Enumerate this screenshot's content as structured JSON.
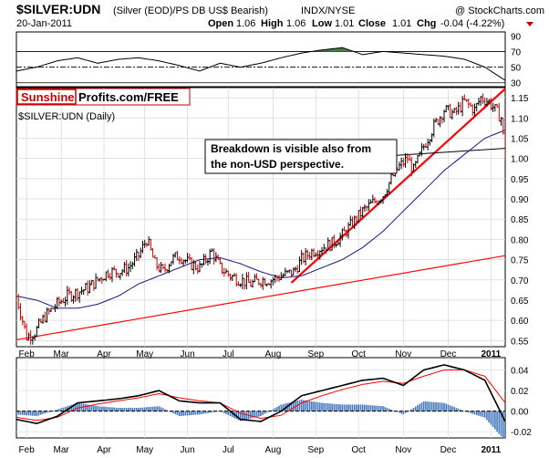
{
  "header": {
    "symbol": "$SILVER:UDN",
    "description": "(Silver (EOD)/PS DB US$ Bearish)",
    "exchange": "INDX/NYSE",
    "watermark": "@ StockCharts.com",
    "date": "20-Jan-2011",
    "ohlc": {
      "open_label": "Open",
      "open": "1.06",
      "high_label": "High",
      "high": "1.06",
      "low_label": "Low",
      "low": "1.01",
      "close_label": "Close",
      "close": "1.01",
      "chg_label": "Chg",
      "chg": "-0.04 (-4.22%)"
    }
  },
  "logo": {
    "part1": "Sunshine",
    "part2": "Profits.com/FREE"
  },
  "main_panel_label": "$SILVER:UDN (Daily)",
  "annotation": {
    "line1": "Breakdown is visible also from",
    "line2": "the non-USD perspective."
  },
  "colors": {
    "price_up": "#000000",
    "price_down": "#cc0000",
    "moving_average": "#1a1a80",
    "trendline": "#ff0000",
    "rsi_overbought_fill": "#4a7a4a",
    "macd_line": "#000000",
    "macd_signal": "#ff0000",
    "histogram": "#4477bb"
  },
  "chart_data": [
    {
      "type": "line",
      "panel": "rsi",
      "ylim": [
        25,
        95
      ],
      "yticks": [
        30,
        50,
        70,
        90
      ],
      "reference_lines": [
        30,
        50,
        70
      ],
      "x": [
        0,
        10,
        20,
        30,
        40,
        50,
        60,
        70,
        80,
        90,
        100,
        110,
        120,
        130,
        140,
        150,
        160,
        170,
        180,
        190,
        200,
        210,
        220,
        230,
        240
      ],
      "values": [
        45,
        50,
        58,
        62,
        55,
        60,
        62,
        58,
        52,
        45,
        55,
        50,
        55,
        62,
        68,
        72,
        75,
        66,
        70,
        68,
        66,
        64,
        60,
        50,
        33
      ]
    },
    {
      "type": "line",
      "panel": "price",
      "title": "$SILVER:UDN (Daily)",
      "ylim": [
        0.535,
        1.175
      ],
      "yticks": [
        0.55,
        0.6,
        0.65,
        0.7,
        0.75,
        0.8,
        0.85,
        0.9,
        0.95,
        1.0,
        1.05,
        1.1,
        1.15
      ],
      "x_tick_labels": [
        {
          "label": "Feb",
          "x": 5
        },
        {
          "label": "Mar",
          "x": 22
        },
        {
          "label": "Apr",
          "x": 43
        },
        {
          "label": "May",
          "x": 63
        },
        {
          "label": "Jun",
          "x": 84
        },
        {
          "label": "Jul",
          "x": 104
        },
        {
          "label": "Aug",
          "x": 126
        },
        {
          "label": "Sep",
          "x": 147
        },
        {
          "label": "Oct",
          "x": 168
        },
        {
          "label": "Nov",
          "x": 190
        },
        {
          "label": "Dec",
          "x": 212
        },
        {
          "label": "2011",
          "x": 233
        }
      ],
      "series": [
        {
          "role": "price",
          "x": [
            0,
            5,
            9,
            14,
            20,
            25,
            30,
            35,
            40,
            45,
            50,
            55,
            60,
            64,
            68,
            72,
            76,
            80,
            85,
            90,
            96,
            100,
            105,
            110,
            115,
            120,
            125,
            130,
            136,
            140,
            145,
            150,
            155,
            160,
            165,
            170,
            175,
            180,
            184,
            188,
            192,
            195,
            200,
            205,
            210,
            215,
            220,
            225,
            228,
            232,
            235,
            238,
            240
          ],
          "values": [
            0.66,
            0.56,
            0.57,
            0.61,
            0.64,
            0.66,
            0.67,
            0.68,
            0.7,
            0.72,
            0.72,
            0.73,
            0.76,
            0.8,
            0.74,
            0.72,
            0.75,
            0.76,
            0.74,
            0.73,
            0.77,
            0.73,
            0.71,
            0.7,
            0.69,
            0.7,
            0.7,
            0.71,
            0.72,
            0.75,
            0.77,
            0.78,
            0.79,
            0.81,
            0.84,
            0.87,
            0.89,
            0.91,
            0.95,
            0.98,
            1.0,
            0.97,
            1.03,
            1.08,
            1.12,
            1.11,
            1.14,
            1.12,
            1.15,
            1.14,
            1.12,
            1.1,
            1.01
          ]
        },
        {
          "role": "moving_average",
          "x": [
            0,
            10,
            20,
            30,
            40,
            50,
            60,
            70,
            80,
            90,
            100,
            110,
            120,
            130,
            140,
            150,
            160,
            170,
            180,
            190,
            200,
            210,
            220,
            230,
            240
          ],
          "values": [
            0.66,
            0.65,
            0.63,
            0.63,
            0.64,
            0.66,
            0.69,
            0.71,
            0.73,
            0.75,
            0.755,
            0.74,
            0.72,
            0.705,
            0.71,
            0.73,
            0.75,
            0.78,
            0.82,
            0.87,
            0.92,
            0.97,
            1.01,
            1.05,
            1.07
          ]
        }
      ],
      "trendlines": [
        {
          "x": [
            0,
            240
          ],
          "values": [
            0.552,
            0.76
          ]
        },
        {
          "x": [
            135,
            245
          ],
          "values": [
            0.693,
            1.195
          ]
        },
        {
          "x": [
            172,
            240
          ],
          "values": [
            1.003,
            1.025
          ]
        }
      ]
    },
    {
      "type": "line",
      "panel": "macd",
      "ylim": [
        -0.026,
        0.052
      ],
      "yticks": [
        -0.02,
        0.0,
        0.02,
        0.04
      ],
      "series": [
        {
          "role": "macd",
          "x": [
            0,
            10,
            20,
            30,
            40,
            50,
            60,
            70,
            80,
            90,
            100,
            110,
            120,
            130,
            140,
            150,
            160,
            170,
            180,
            190,
            200,
            210,
            220,
            230,
            240
          ],
          "values": [
            -0.008,
            -0.012,
            -0.005,
            0.008,
            0.01,
            0.012,
            0.015,
            0.02,
            0.01,
            0.008,
            0.008,
            -0.008,
            -0.01,
            0.0,
            0.015,
            0.02,
            0.025,
            0.03,
            0.032,
            0.025,
            0.04,
            0.045,
            0.04,
            0.03,
            -0.01
          ]
        },
        {
          "role": "signal",
          "x": [
            0,
            10,
            20,
            30,
            40,
            50,
            60,
            70,
            80,
            90,
            100,
            110,
            120,
            130,
            140,
            150,
            160,
            170,
            180,
            190,
            200,
            210,
            220,
            230,
            240
          ],
          "values": [
            -0.006,
            -0.009,
            -0.006,
            0.003,
            0.007,
            0.01,
            0.013,
            0.017,
            0.013,
            0.01,
            0.008,
            -0.002,
            -0.007,
            -0.004,
            0.008,
            0.015,
            0.021,
            0.026,
            0.029,
            0.027,
            0.034,
            0.04,
            0.04,
            0.034,
            0.008
          ]
        }
      ]
    }
  ]
}
